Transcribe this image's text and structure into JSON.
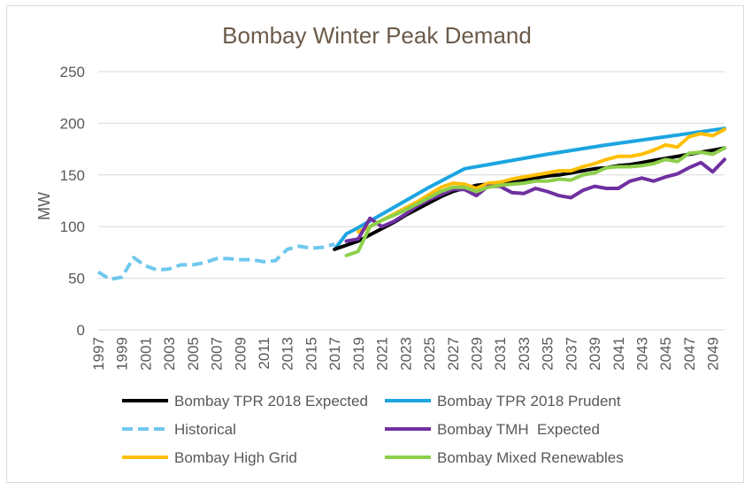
{
  "chart_data": {
    "type": "line",
    "title": "Bombay Winter Peak Demand",
    "xlabel": "",
    "ylabel": "MW",
    "ylim": [
      0,
      250
    ],
    "yticks": [
      "0",
      "50",
      "100",
      "150",
      "200",
      "250"
    ],
    "xlim": [
      1997,
      2050
    ],
    "xticks": [
      "1997",
      "1999",
      "2001",
      "2003",
      "2005",
      "2007",
      "2009",
      "2011",
      "2013",
      "2015",
      "2017",
      "2019",
      "2021",
      "2023",
      "2025",
      "2027",
      "2029",
      "2031",
      "2033",
      "2035",
      "2037",
      "2039",
      "2041",
      "2043",
      "2045",
      "2047",
      "2049"
    ],
    "grid": true,
    "legend_position": "bottom",
    "series": [
      {
        "name": "Bombay TPR 2018 Expected",
        "color": "#000000",
        "style": "solid",
        "points": [
          [
            2017,
            78
          ],
          [
            2018,
            82
          ],
          [
            2019,
            86
          ],
          [
            2020,
            92
          ],
          [
            2021,
            98
          ],
          [
            2022,
            104
          ],
          [
            2023,
            111
          ],
          [
            2024,
            117
          ],
          [
            2025,
            123
          ],
          [
            2026,
            129
          ],
          [
            2027,
            134
          ],
          [
            2028,
            137
          ],
          [
            2029,
            140
          ],
          [
            2030,
            141
          ],
          [
            2031,
            142
          ],
          [
            2032,
            143
          ],
          [
            2033,
            145
          ],
          [
            2034,
            147
          ],
          [
            2035,
            149
          ],
          [
            2036,
            150
          ],
          [
            2037,
            152
          ],
          [
            2038,
            154
          ],
          [
            2039,
            156
          ],
          [
            2040,
            157
          ],
          [
            2041,
            159
          ],
          [
            2042,
            160
          ],
          [
            2043,
            162
          ],
          [
            2044,
            164
          ],
          [
            2045,
            166
          ],
          [
            2046,
            168
          ],
          [
            2047,
            170
          ],
          [
            2048,
            172
          ],
          [
            2049,
            174
          ],
          [
            2050,
            176
          ]
        ]
      },
      {
        "name": "Bombay TPR 2018 Prudent",
        "color": "#1ca5e0",
        "style": "solid",
        "points": [
          [
            2017,
            78
          ],
          [
            2018,
            93
          ],
          [
            2019,
            99
          ],
          [
            2021,
            112
          ],
          [
            2023,
            125
          ],
          [
            2025,
            138
          ],
          [
            2028,
            156
          ],
          [
            2030,
            160
          ],
          [
            2035,
            170
          ],
          [
            2040,
            179
          ],
          [
            2045,
            187
          ],
          [
            2050,
            195
          ]
        ]
      },
      {
        "name": "Historical",
        "color": "#6fc8ee",
        "style": "dashed",
        "points": [
          [
            1997,
            56
          ],
          [
            1998,
            49
          ],
          [
            1999,
            51
          ],
          [
            2000,
            70
          ],
          [
            2001,
            62
          ],
          [
            2002,
            58
          ],
          [
            2003,
            59
          ],
          [
            2004,
            63
          ],
          [
            2005,
            63
          ],
          [
            2006,
            65
          ],
          [
            2007,
            69
          ],
          [
            2008,
            69
          ],
          [
            2009,
            68
          ],
          [
            2010,
            68
          ],
          [
            2011,
            66
          ],
          [
            2012,
            67
          ],
          [
            2013,
            78
          ],
          [
            2014,
            81
          ],
          [
            2015,
            79
          ],
          [
            2016,
            80
          ],
          [
            2017,
            83
          ]
        ]
      },
      {
        "name": "Bombay TMH  Expected",
        "color": "#7030a0",
        "style": "solid",
        "points": [
          [
            2018,
            86
          ],
          [
            2019,
            88
          ],
          [
            2020,
            108
          ],
          [
            2021,
            100
          ],
          [
            2022,
            105
          ],
          [
            2023,
            112
          ],
          [
            2024,
            120
          ],
          [
            2025,
            126
          ],
          [
            2026,
            131
          ],
          [
            2027,
            136
          ],
          [
            2028,
            136
          ],
          [
            2029,
            130
          ],
          [
            2030,
            139
          ],
          [
            2031,
            139
          ],
          [
            2032,
            133
          ],
          [
            2033,
            132
          ],
          [
            2034,
            137
          ],
          [
            2035,
            134
          ],
          [
            2036,
            130
          ],
          [
            2037,
            128
          ],
          [
            2038,
            135
          ],
          [
            2039,
            139
          ],
          [
            2040,
            137
          ],
          [
            2041,
            137
          ],
          [
            2042,
            144
          ],
          [
            2043,
            147
          ],
          [
            2044,
            144
          ],
          [
            2045,
            148
          ],
          [
            2046,
            151
          ],
          [
            2047,
            157
          ],
          [
            2048,
            162
          ],
          [
            2049,
            153
          ],
          [
            2050,
            165
          ]
        ]
      },
      {
        "name": "Bombay High Grid",
        "color": "#ffbf00",
        "style": "solid",
        "points": [
          [
            2019,
            95
          ],
          [
            2020,
            100
          ],
          [
            2021,
            106
          ],
          [
            2022,
            112
          ],
          [
            2023,
            118
          ],
          [
            2024,
            124
          ],
          [
            2025,
            131
          ],
          [
            2026,
            138
          ],
          [
            2027,
            142
          ],
          [
            2028,
            141
          ],
          [
            2029,
            137
          ],
          [
            2030,
            142
          ],
          [
            2031,
            143
          ],
          [
            2032,
            146
          ],
          [
            2033,
            148
          ],
          [
            2034,
            150
          ],
          [
            2035,
            152
          ],
          [
            2036,
            154
          ],
          [
            2037,
            154
          ],
          [
            2038,
            158
          ],
          [
            2039,
            161
          ],
          [
            2040,
            165
          ],
          [
            2041,
            168
          ],
          [
            2042,
            168
          ],
          [
            2043,
            170
          ],
          [
            2044,
            174
          ],
          [
            2045,
            179
          ],
          [
            2046,
            177
          ],
          [
            2047,
            187
          ],
          [
            2048,
            190
          ],
          [
            2049,
            188
          ],
          [
            2050,
            194
          ]
        ]
      },
      {
        "name": "Bombay Mixed Renewables",
        "color": "#8dcf4a",
        "style": "solid",
        "points": [
          [
            2018,
            72
          ],
          [
            2019,
            76
          ],
          [
            2020,
            100
          ],
          [
            2021,
            106
          ],
          [
            2022,
            111
          ],
          [
            2023,
            116
          ],
          [
            2024,
            122
          ],
          [
            2025,
            128
          ],
          [
            2026,
            134
          ],
          [
            2027,
            138
          ],
          [
            2028,
            138
          ],
          [
            2029,
            134
          ],
          [
            2030,
            138
          ],
          [
            2031,
            140
          ],
          [
            2032,
            141
          ],
          [
            2033,
            142
          ],
          [
            2034,
            144
          ],
          [
            2035,
            144
          ],
          [
            2036,
            146
          ],
          [
            2037,
            145
          ],
          [
            2038,
            150
          ],
          [
            2039,
            152
          ],
          [
            2040,
            157
          ],
          [
            2041,
            158
          ],
          [
            2042,
            158
          ],
          [
            2043,
            159
          ],
          [
            2044,
            161
          ],
          [
            2045,
            165
          ],
          [
            2046,
            163
          ],
          [
            2047,
            171
          ],
          [
            2048,
            172
          ],
          [
            2049,
            170
          ],
          [
            2050,
            176
          ]
        ]
      }
    ]
  }
}
